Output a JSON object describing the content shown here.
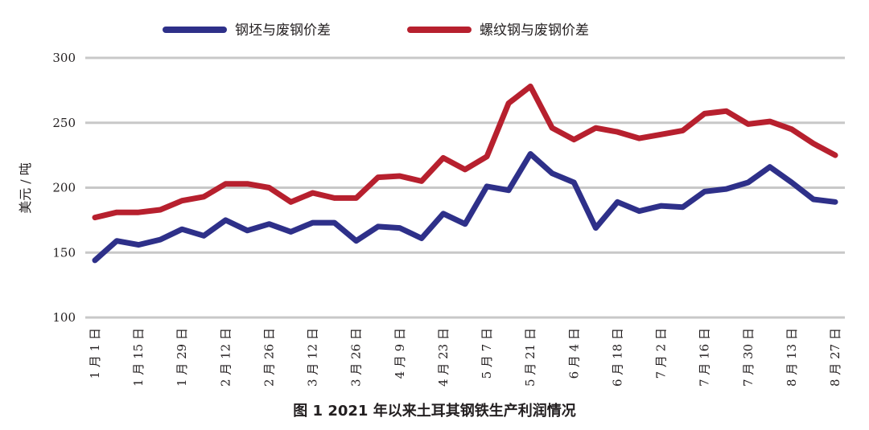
{
  "caption": "图 1  2021 年以来土耳其钢铁生产利润情况",
  "colors": {
    "billet": "#2e3089",
    "rebar": "#b7202e",
    "grid": "#c8c8c8",
    "text": "#231f20"
  },
  "chart_data": {
    "type": "line",
    "ylabel": "美元 / 吨",
    "ylim": [
      100,
      300
    ],
    "yticks": [
      100,
      150,
      200,
      250,
      300
    ],
    "grid": true,
    "legend_position": "top",
    "x_tick_labels": [
      "1 月 1 日",
      "1 月 15 日",
      "1 月 29 日",
      "2 月 12 日",
      "2 月 26 日",
      "3 月 12 日",
      "3 月 26 日",
      "4 月 9 日",
      "4 月 23 日",
      "5 月 7 日",
      "5 月 21 日",
      "6 月 4 日",
      "6 月 18 日",
      "7 月 2 日",
      "7 月 16 日",
      "7 月 30 日",
      "8 月 13 日",
      "8 月 27 日"
    ],
    "series": [
      {
        "name": "钢坯与废钢价差",
        "values": [
          144,
          159,
          156,
          160,
          168,
          163,
          175,
          167,
          172,
          166,
          173,
          173,
          159,
          170,
          169,
          161,
          180,
          172,
          201,
          198,
          226,
          211,
          204,
          169,
          189,
          182,
          186,
          185,
          197,
          199,
          204,
          216,
          204,
          191,
          189
        ]
      },
      {
        "name": "螺纹钢与废钢价差",
        "values": [
          177,
          181,
          181,
          183,
          190,
          193,
          203,
          203,
          200,
          189,
          196,
          192,
          192,
          208,
          209,
          205,
          223,
          214,
          224,
          265,
          278,
          246,
          237,
          246,
          243,
          238,
          241,
          244,
          257,
          259,
          249,
          251,
          245,
          234,
          225
        ]
      }
    ]
  }
}
